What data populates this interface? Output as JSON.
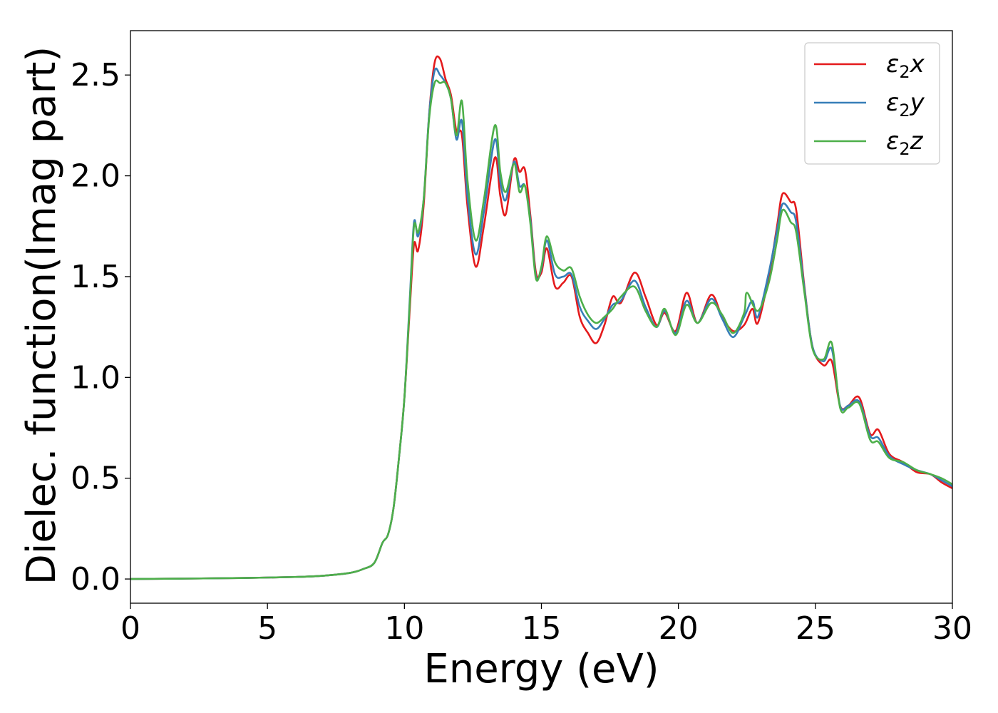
{
  "chart_data": {
    "type": "line",
    "title": "",
    "xlabel": "Energy (eV)",
    "ylabel": "Dielec. function(Imag part)",
    "xlim": [
      0,
      30
    ],
    "ylim": [
      -0.12,
      2.72
    ],
    "xticks": [
      0,
      5,
      10,
      15,
      20,
      25,
      30
    ],
    "xtick_labels": [
      "0",
      "5",
      "10",
      "15",
      "20",
      "25",
      "30"
    ],
    "yticks": [
      0.0,
      0.5,
      1.0,
      1.5,
      2.0,
      2.5
    ],
    "ytick_labels": [
      "0.0",
      "0.5",
      "1.0",
      "1.5",
      "2.0",
      "2.5"
    ],
    "grid": false,
    "legend_position": "top-right",
    "series": [
      {
        "name": "ε₂x",
        "legend_base": "ε",
        "legend_sub": "2",
        "legend_suffix": "x",
        "color": "#e41a1c",
        "points": [
          [
            0,
            0.0
          ],
          [
            2,
            0.002
          ],
          [
            4,
            0.005
          ],
          [
            6,
            0.01
          ],
          [
            7,
            0.016
          ],
          [
            8,
            0.03
          ],
          [
            8.5,
            0.05
          ],
          [
            8.9,
            0.08
          ],
          [
            9.2,
            0.18
          ],
          [
            9.4,
            0.22
          ],
          [
            9.6,
            0.35
          ],
          [
            9.8,
            0.6
          ],
          [
            10.0,
            0.9
          ],
          [
            10.2,
            1.35
          ],
          [
            10.35,
            1.66
          ],
          [
            10.5,
            1.63
          ],
          [
            10.7,
            1.85
          ],
          [
            10.9,
            2.3
          ],
          [
            11.1,
            2.56
          ],
          [
            11.3,
            2.58
          ],
          [
            11.5,
            2.48
          ],
          [
            11.7,
            2.4
          ],
          [
            11.9,
            2.22
          ],
          [
            12.1,
            2.2
          ],
          [
            12.3,
            1.85
          ],
          [
            12.6,
            1.55
          ],
          [
            12.9,
            1.75
          ],
          [
            13.3,
            2.09
          ],
          [
            13.5,
            1.9
          ],
          [
            13.7,
            1.81
          ],
          [
            14.0,
            2.08
          ],
          [
            14.2,
            2.02
          ],
          [
            14.4,
            2.03
          ],
          [
            14.6,
            1.8
          ],
          [
            14.8,
            1.52
          ],
          [
            15.0,
            1.52
          ],
          [
            15.2,
            1.64
          ],
          [
            15.5,
            1.45
          ],
          [
            15.8,
            1.47
          ],
          [
            16.1,
            1.5
          ],
          [
            16.4,
            1.3
          ],
          [
            16.7,
            1.22
          ],
          [
            17.0,
            1.17
          ],
          [
            17.3,
            1.26
          ],
          [
            17.6,
            1.4
          ],
          [
            17.9,
            1.37
          ],
          [
            18.4,
            1.52
          ],
          [
            18.8,
            1.4
          ],
          [
            19.2,
            1.26
          ],
          [
            19.5,
            1.32
          ],
          [
            19.9,
            1.23
          ],
          [
            20.3,
            1.42
          ],
          [
            20.7,
            1.27
          ],
          [
            21.2,
            1.41
          ],
          [
            21.6,
            1.3
          ],
          [
            22.0,
            1.23
          ],
          [
            22.4,
            1.26
          ],
          [
            22.7,
            1.34
          ],
          [
            22.9,
            1.27
          ],
          [
            23.3,
            1.5
          ],
          [
            23.6,
            1.75
          ],
          [
            23.8,
            1.91
          ],
          [
            24.1,
            1.87
          ],
          [
            24.3,
            1.83
          ],
          [
            24.6,
            1.45
          ],
          [
            24.9,
            1.15
          ],
          [
            25.3,
            1.06
          ],
          [
            25.6,
            1.08
          ],
          [
            25.9,
            0.86
          ],
          [
            26.2,
            0.86
          ],
          [
            26.6,
            0.9
          ],
          [
            27.0,
            0.72
          ],
          [
            27.3,
            0.74
          ],
          [
            27.7,
            0.62
          ],
          [
            28.2,
            0.58
          ],
          [
            28.7,
            0.53
          ],
          [
            29.2,
            0.52
          ],
          [
            29.6,
            0.48
          ],
          [
            30.0,
            0.45
          ]
        ]
      },
      {
        "name": "ε₂y",
        "legend_base": "ε",
        "legend_sub": "2",
        "legend_suffix": "y",
        "color": "#377eb8",
        "points": [
          [
            0,
            0.0
          ],
          [
            2,
            0.002
          ],
          [
            4,
            0.005
          ],
          [
            6,
            0.01
          ],
          [
            7,
            0.016
          ],
          [
            8,
            0.03
          ],
          [
            8.5,
            0.05
          ],
          [
            8.9,
            0.08
          ],
          [
            9.2,
            0.18
          ],
          [
            9.4,
            0.22
          ],
          [
            9.6,
            0.35
          ],
          [
            9.8,
            0.6
          ],
          [
            10.0,
            0.9
          ],
          [
            10.2,
            1.4
          ],
          [
            10.35,
            1.77
          ],
          [
            10.5,
            1.7
          ],
          [
            10.7,
            1.88
          ],
          [
            10.9,
            2.3
          ],
          [
            11.1,
            2.52
          ],
          [
            11.3,
            2.5
          ],
          [
            11.5,
            2.46
          ],
          [
            11.7,
            2.38
          ],
          [
            11.9,
            2.18
          ],
          [
            12.1,
            2.27
          ],
          [
            12.3,
            1.9
          ],
          [
            12.6,
            1.61
          ],
          [
            12.9,
            1.82
          ],
          [
            13.3,
            2.18
          ],
          [
            13.5,
            1.97
          ],
          [
            13.7,
            1.88
          ],
          [
            14.0,
            2.07
          ],
          [
            14.2,
            1.95
          ],
          [
            14.4,
            1.95
          ],
          [
            14.6,
            1.78
          ],
          [
            14.8,
            1.5
          ],
          [
            15.0,
            1.54
          ],
          [
            15.2,
            1.68
          ],
          [
            15.5,
            1.51
          ],
          [
            15.8,
            1.5
          ],
          [
            16.1,
            1.51
          ],
          [
            16.4,
            1.35
          ],
          [
            16.7,
            1.28
          ],
          [
            17.0,
            1.24
          ],
          [
            17.3,
            1.29
          ],
          [
            17.6,
            1.36
          ],
          [
            17.9,
            1.38
          ],
          [
            18.4,
            1.48
          ],
          [
            18.8,
            1.35
          ],
          [
            19.2,
            1.25
          ],
          [
            19.5,
            1.33
          ],
          [
            19.9,
            1.22
          ],
          [
            20.3,
            1.38
          ],
          [
            20.7,
            1.27
          ],
          [
            21.2,
            1.39
          ],
          [
            21.6,
            1.29
          ],
          [
            22.0,
            1.2
          ],
          [
            22.4,
            1.3
          ],
          [
            22.7,
            1.38
          ],
          [
            22.9,
            1.3
          ],
          [
            23.3,
            1.52
          ],
          [
            23.6,
            1.73
          ],
          [
            23.8,
            1.86
          ],
          [
            24.1,
            1.82
          ],
          [
            24.3,
            1.77
          ],
          [
            24.6,
            1.44
          ],
          [
            24.9,
            1.15
          ],
          [
            25.3,
            1.08
          ],
          [
            25.6,
            1.14
          ],
          [
            25.9,
            0.86
          ],
          [
            26.2,
            0.86
          ],
          [
            26.6,
            0.88
          ],
          [
            27.0,
            0.71
          ],
          [
            27.3,
            0.7
          ],
          [
            27.7,
            0.61
          ],
          [
            28.2,
            0.57
          ],
          [
            28.7,
            0.54
          ],
          [
            29.2,
            0.52
          ],
          [
            29.6,
            0.49
          ],
          [
            30.0,
            0.46
          ]
        ]
      },
      {
        "name": "ε₂z",
        "legend_base": "ε",
        "legend_sub": "2",
        "legend_suffix": "z",
        "color": "#4daf4a",
        "points": [
          [
            0,
            0.0
          ],
          [
            2,
            0.002
          ],
          [
            4,
            0.005
          ],
          [
            6,
            0.01
          ],
          [
            7,
            0.016
          ],
          [
            8,
            0.03
          ],
          [
            8.5,
            0.05
          ],
          [
            8.9,
            0.08
          ],
          [
            9.2,
            0.18
          ],
          [
            9.4,
            0.22
          ],
          [
            9.6,
            0.35
          ],
          [
            9.8,
            0.6
          ],
          [
            10.0,
            0.9
          ],
          [
            10.2,
            1.38
          ],
          [
            10.35,
            1.75
          ],
          [
            10.5,
            1.72
          ],
          [
            10.7,
            1.88
          ],
          [
            10.9,
            2.28
          ],
          [
            11.1,
            2.46
          ],
          [
            11.3,
            2.46
          ],
          [
            11.5,
            2.46
          ],
          [
            11.7,
            2.38
          ],
          [
            11.9,
            2.2
          ],
          [
            12.1,
            2.37
          ],
          [
            12.3,
            1.98
          ],
          [
            12.6,
            1.68
          ],
          [
            12.9,
            1.88
          ],
          [
            13.3,
            2.25
          ],
          [
            13.5,
            2.02
          ],
          [
            13.7,
            1.92
          ],
          [
            14.0,
            2.06
          ],
          [
            14.2,
            1.92
          ],
          [
            14.4,
            1.95
          ],
          [
            14.6,
            1.76
          ],
          [
            14.8,
            1.49
          ],
          [
            15.0,
            1.55
          ],
          [
            15.2,
            1.7
          ],
          [
            15.5,
            1.57
          ],
          [
            15.8,
            1.53
          ],
          [
            16.1,
            1.54
          ],
          [
            16.4,
            1.4
          ],
          [
            16.7,
            1.31
          ],
          [
            17.0,
            1.27
          ],
          [
            17.3,
            1.3
          ],
          [
            17.6,
            1.34
          ],
          [
            17.9,
            1.4
          ],
          [
            18.4,
            1.45
          ],
          [
            18.8,
            1.33
          ],
          [
            19.2,
            1.25
          ],
          [
            19.5,
            1.34
          ],
          [
            19.9,
            1.21
          ],
          [
            20.3,
            1.36
          ],
          [
            20.7,
            1.27
          ],
          [
            21.2,
            1.37
          ],
          [
            21.6,
            1.31
          ],
          [
            22.0,
            1.22
          ],
          [
            22.4,
            1.32
          ],
          [
            22.5,
            1.42
          ],
          [
            22.9,
            1.33
          ],
          [
            23.3,
            1.47
          ],
          [
            23.6,
            1.68
          ],
          [
            23.8,
            1.83
          ],
          [
            24.1,
            1.77
          ],
          [
            24.3,
            1.72
          ],
          [
            24.6,
            1.42
          ],
          [
            24.9,
            1.14
          ],
          [
            25.3,
            1.09
          ],
          [
            25.6,
            1.17
          ],
          [
            25.9,
            0.85
          ],
          [
            26.2,
            0.85
          ],
          [
            26.6,
            0.87
          ],
          [
            27.0,
            0.69
          ],
          [
            27.3,
            0.68
          ],
          [
            27.7,
            0.6
          ],
          [
            28.2,
            0.58
          ],
          [
            28.7,
            0.54
          ],
          [
            29.2,
            0.52
          ],
          [
            29.6,
            0.5
          ],
          [
            30.0,
            0.47
          ]
        ]
      }
    ]
  }
}
